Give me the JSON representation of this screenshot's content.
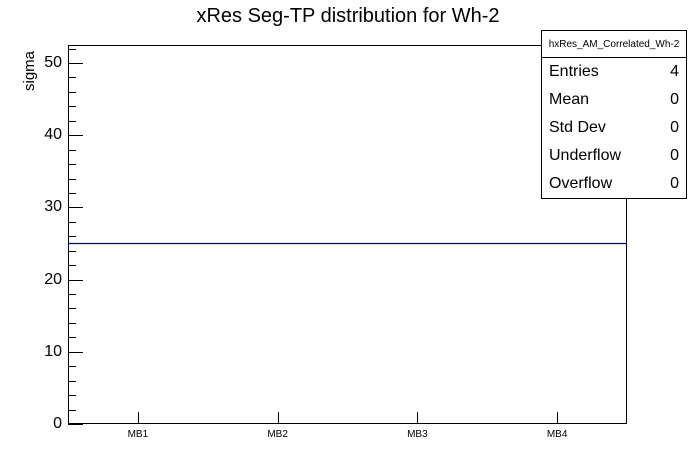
{
  "chart_data": {
    "type": "line",
    "title": "xRes Seg-TP distribution for Wh-2",
    "ylabel": "sigma",
    "xlabel": "",
    "categories": [
      "MB1",
      "MB2",
      "MB3",
      "MB4"
    ],
    "values": [
      25,
      25,
      25,
      25
    ],
    "ylim": [
      0,
      52.5
    ],
    "y_ticks": [
      0,
      10,
      20,
      30,
      40,
      50
    ],
    "y_minor_step": 2,
    "grid": false,
    "legend_position": "none",
    "line_color": "#000099",
    "frame_color": "#000000",
    "background_color": "#ffffff"
  },
  "stats_box": {
    "title": "hxRes_AM_Correlated_Wh-2",
    "rows": [
      {
        "label": "Entries",
        "value": "4"
      },
      {
        "label": "Mean",
        "value": "0"
      },
      {
        "label": "Std Dev",
        "value": "0"
      },
      {
        "label": "Underflow",
        "value": "0"
      },
      {
        "label": "Overflow",
        "value": "0"
      }
    ]
  }
}
